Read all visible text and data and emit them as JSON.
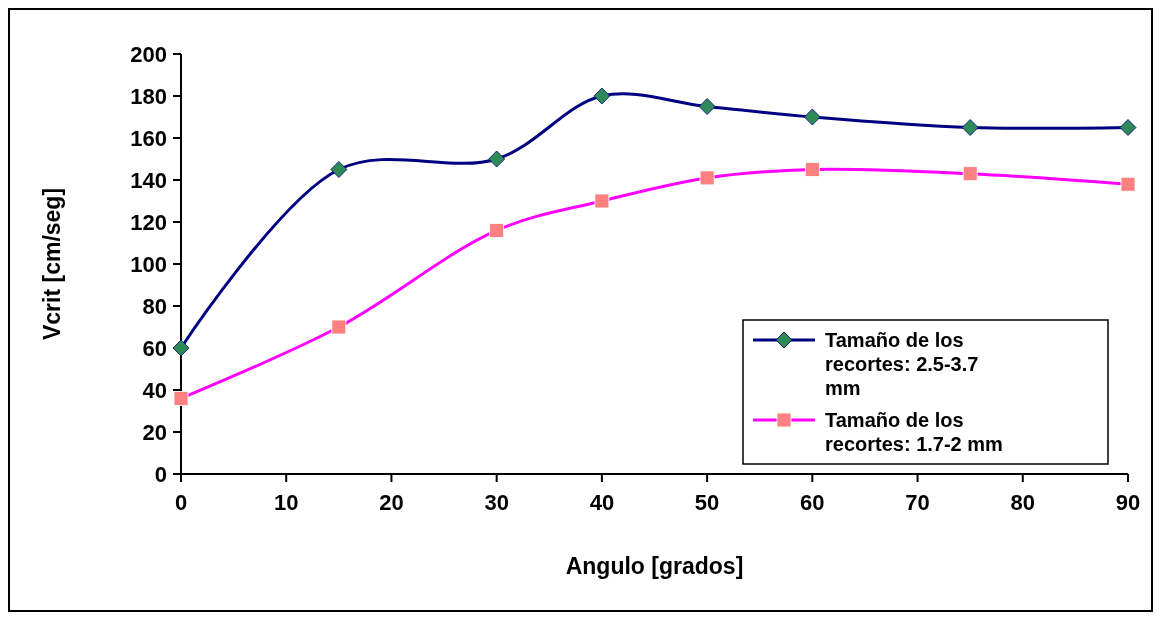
{
  "chart_data": {
    "type": "line",
    "xlabel": "Angulo [grados]",
    "ylabel": "Vcrit [cm/seg]",
    "xlim": [
      0,
      90
    ],
    "xticks": [
      0,
      10,
      20,
      30,
      40,
      50,
      60,
      70,
      80,
      90
    ],
    "ylim": [
      0,
      200
    ],
    "yticks": [
      0,
      20,
      40,
      60,
      80,
      100,
      120,
      140,
      160,
      180,
      200
    ],
    "grid": false,
    "legend": "bottom right",
    "series": [
      {
        "name": "Tamaño de los recortes: 2.5-3.7 mm",
        "color": "#000080",
        "marker": "diamond",
        "colors": [
          "#2e8b57",
          "#2e8b57",
          "#2e8b57",
          "#2e8b57",
          "#2e8b57",
          "#2e8b57",
          "#2e8b57",
          "#2e8b57"
        ],
        "x": [
          0,
          15,
          30,
          40,
          50,
          60,
          75,
          90
        ],
        "values": [
          60,
          145,
          150,
          180,
          175,
          170,
          165,
          165
        ]
      },
      {
        "name": "Tamaño de los recortes: 1.7-2 mm",
        "color": "#ff00ff",
        "marker": "square",
        "colors": [
          "#ff8080",
          "#ff8080",
          "#ff8080",
          "#ff8080",
          "#ff8080",
          "#ff8080",
          "#ff8080",
          "#ff8080"
        ],
        "x": [
          0,
          15,
          30,
          40,
          50,
          60,
          75,
          90
        ],
        "values": [
          36,
          70,
          116,
          130,
          141,
          145,
          143,
          138
        ]
      }
    ]
  }
}
